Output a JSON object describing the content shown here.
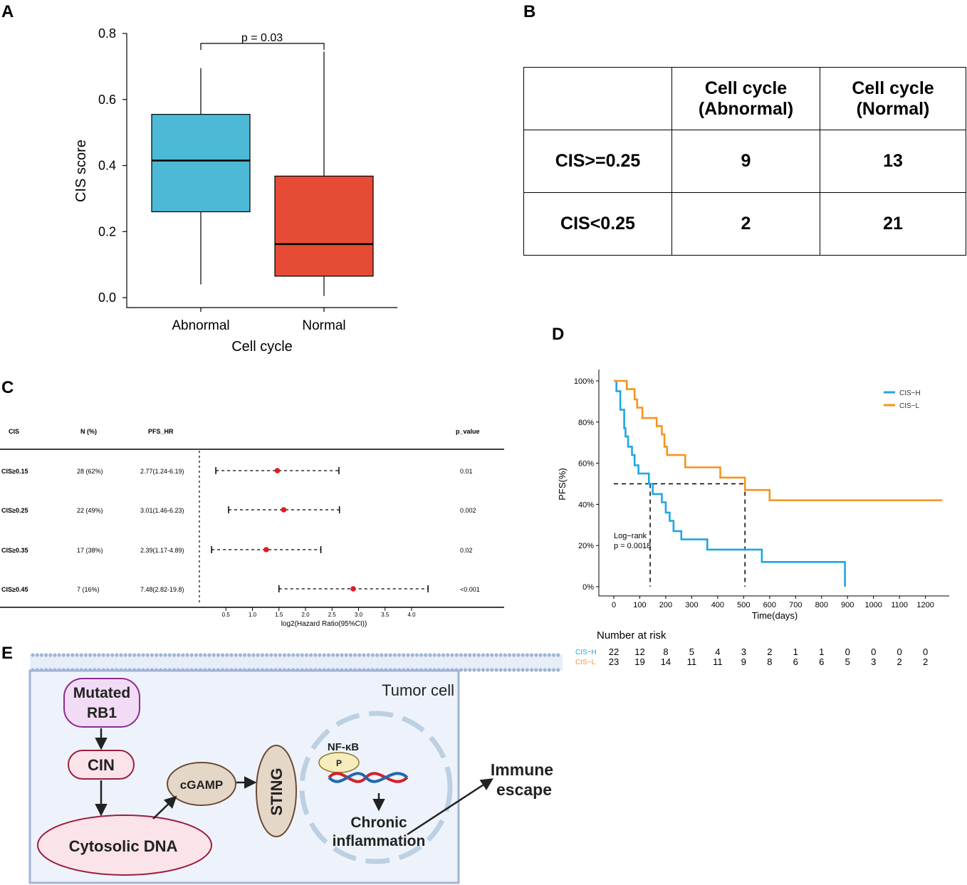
{
  "panel_labels": {
    "a": "A",
    "b": "B",
    "c": "C",
    "d": "D",
    "e": "E"
  },
  "chart_data": [
    {
      "id": "A",
      "type": "box",
      "title": "",
      "xlabel": "Cell cycle",
      "ylabel": "CIS score",
      "ylim": [
        0,
        0.8
      ],
      "yticks": [
        "0.0",
        "0.2",
        "0.4",
        "0.6",
        "0.8"
      ],
      "categories": [
        "Abnormal",
        "Normal"
      ],
      "boxes": [
        {
          "name": "Abnormal",
          "min": 0.04,
          "q1": 0.26,
          "median": 0.415,
          "q3": 0.555,
          "max": 0.695,
          "color": "#4cbad6"
        },
        {
          "name": "Normal",
          "min": 0.005,
          "q1": 0.065,
          "median": 0.162,
          "q3": 0.368,
          "max": 0.745,
          "color": "#e64b35"
        }
      ],
      "annotation": "p = 0.03"
    },
    {
      "id": "B",
      "type": "table",
      "columns": [
        "",
        "Cell cycle\n(Abnormal)",
        "Cell cycle\n(Normal)"
      ],
      "rows": [
        {
          "label": "CIS>=0.25",
          "values": [
            "9",
            "13"
          ]
        },
        {
          "label": "CIS<0.25",
          "values": [
            "2",
            "21"
          ]
        }
      ]
    },
    {
      "id": "C",
      "type": "forest",
      "headers": {
        "cis": "CIS",
        "n": "N (%)",
        "hr": "PFS_HR",
        "p": "p_value"
      },
      "xlabel": "log2(Hazard Ratio(95%CI))",
      "xticks": [
        "0.5",
        "1.0",
        "1.5",
        "2.0",
        "2.5",
        "3.0",
        "3.5",
        "4.0"
      ],
      "reference_line": 0,
      "rows": [
        {
          "cis": "CIS≥0.15",
          "n": "28 (62%)",
          "hr": "2.77(1.24-6.19)",
          "p": "0.01",
          "log2hr": 1.47,
          "low": 0.31,
          "high": 2.63
        },
        {
          "cis": "CIS≥0.25",
          "n": "22 (49%)",
          "hr": "3.01(1.46-6.23)",
          "p": "0.002",
          "log2hr": 1.59,
          "low": 0.55,
          "high": 2.64
        },
        {
          "cis": "CIS≥0.35",
          "n": "17 (38%)",
          "hr": "2.39(1.17-4.89)",
          "p": "0.02",
          "log2hr": 1.26,
          "low": 0.23,
          "high": 2.29
        },
        {
          "cis": "CIS≥0.45",
          "n": "7 (16%)",
          "hr": "7.48(2.82-19.8)",
          "p": "<0.001",
          "log2hr": 2.9,
          "low": 1.5,
          "high": 4.31
        }
      ],
      "point_color": "#e41a1c"
    },
    {
      "id": "D",
      "type": "line",
      "subtype": "kaplan-meier",
      "xlabel": "Time(days)",
      "ylabel": "PFS(%)",
      "xlim": [
        0,
        1270
      ],
      "ylim": [
        0,
        100
      ],
      "xticks": [
        "0",
        "100",
        "200",
        "300",
        "400",
        "500",
        "600",
        "700",
        "800",
        "900",
        "1000",
        "1100",
        "1200"
      ],
      "yticks": [
        "0%",
        "20%",
        "40%",
        "60%",
        "80%",
        "100%"
      ],
      "legend": [
        "CIS−H",
        "CIS−L"
      ],
      "annotation": [
        "Log−rank",
        "p = 0.0018"
      ],
      "median_lines": [
        140,
        505
      ],
      "series": [
        {
          "name": "CIS−H",
          "color": "#1ea7e1",
          "steps": [
            [
              0,
              100
            ],
            [
              10,
              95
            ],
            [
              25,
              86
            ],
            [
              40,
              77
            ],
            [
              45,
              73
            ],
            [
              55,
              68
            ],
            [
              70,
              64
            ],
            [
              80,
              59
            ],
            [
              95,
              55
            ],
            [
              135,
              50
            ],
            [
              150,
              45
            ],
            [
              185,
              41
            ],
            [
              200,
              36
            ],
            [
              215,
              32
            ],
            [
              230,
              27
            ],
            [
              260,
              23
            ],
            [
              360,
              18
            ],
            [
              570,
              12
            ],
            [
              890,
              0
            ]
          ],
          "end": 890
        },
        {
          "name": "CIS−L",
          "color": "#f7931e",
          "steps": [
            [
              0,
              100
            ],
            [
              50,
              96
            ],
            [
              80,
              91
            ],
            [
              90,
              87
            ],
            [
              110,
              82
            ],
            [
              165,
              78
            ],
            [
              185,
              74
            ],
            [
              195,
              68
            ],
            [
              205,
              64
            ],
            [
              275,
              58
            ],
            [
              410,
              53
            ],
            [
              505,
              47
            ],
            [
              600,
              42
            ]
          ],
          "end": 1265
        }
      ],
      "risk_table": {
        "title": "Number at risk",
        "times": [
          0,
          100,
          200,
          300,
          400,
          500,
          600,
          700,
          800,
          900,
          1000,
          1100,
          1200
        ],
        "rows": [
          {
            "name": "CIS−H",
            "color": "#1ea7e1",
            "values": [
              "22",
              "12",
              "8",
              "5",
              "4",
              "3",
              "2",
              "1",
              "1",
              "0",
              "0",
              "0",
              "0"
            ]
          },
          {
            "name": "CIS−L",
            "color": "#f7931e",
            "values": [
              "23",
              "19",
              "14",
              "11",
              "11",
              "9",
              "8",
              "6",
              "6",
              "5",
              "3",
              "2",
              "2"
            ]
          }
        ]
      }
    }
  ],
  "diagram_e": {
    "cell_label": "Tumor cell",
    "mutated": [
      "Mutated",
      "RB1"
    ],
    "cin": "CIN",
    "cytosolic": "Cytosolic DNA",
    "cgamp": "cGAMP",
    "sting": "STING",
    "nfkb": "NF-κB",
    "p": "P",
    "chronic": [
      "Chronic",
      "inflammation"
    ],
    "immune": [
      "Immune",
      "escape"
    ]
  }
}
